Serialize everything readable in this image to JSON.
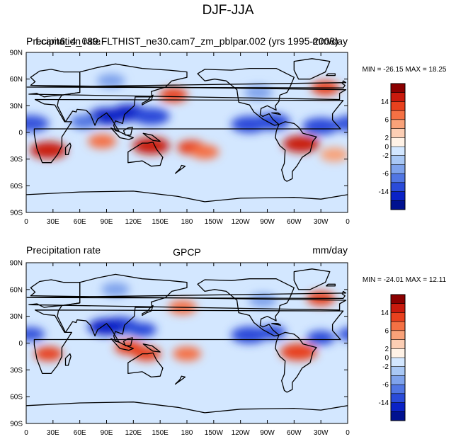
{
  "figure": {
    "title": "DJF-JJA",
    "colors": {
      "background": "#ffffff",
      "coast": "#000000",
      "ocean_neutral": "#d3e7ff"
    }
  },
  "colorbar": {
    "tick_labels": [
      "14",
      "6",
      "2",
      "0",
      "-2",
      "-6",
      "-14"
    ],
    "colors_top_to_bottom": [
      "#8b0000",
      "#c91a0d",
      "#e8411e",
      "#f57144",
      "#f9a279",
      "#fcceb4",
      "#fff2e6",
      "#d3e7ff",
      "#a9c8f5",
      "#7fa3ec",
      "#5176e3",
      "#2a4bd9",
      "#0a22c6",
      "#001190"
    ]
  },
  "chart_data": [
    {
      "type": "heatmap",
      "panel": "top",
      "left_string": "Precipitation rate",
      "center_string": "f.cam6_4_089.FLTHIST_ne30.cam7_zm_pblpar.002 (yrs 1995-2008)",
      "right_string": "mm/day",
      "stats_label": "MIN = -26.15 MAX =  18.25",
      "min": -26.15,
      "max": 18.25,
      "units": "mm/day",
      "x_tick_labels": [
        "0",
        "30E",
        "60E",
        "90E",
        "120E",
        "150E",
        "180",
        "150W",
        "120W",
        "90W",
        "60W",
        "30W",
        "0"
      ],
      "y_tick_labels": [
        "90N",
        "60N",
        "30N",
        "0",
        "30S",
        "60S",
        "90S"
      ],
      "anomalies": [
        {
          "name": "south-america-wet",
          "lon": 308,
          "lat": -13,
          "value": 12
        },
        {
          "name": "southern-africa-wet",
          "lon": 25,
          "lat": -20,
          "value": 10
        },
        {
          "name": "north-australia-wet",
          "lon": 140,
          "lat": -15,
          "value": 10
        },
        {
          "name": "spcz-wet",
          "lon": 185,
          "lat": -17,
          "value": 8
        },
        {
          "name": "south-pacific-wet",
          "lon": 200,
          "lat": -22,
          "value": 5
        },
        {
          "name": "indian-ocean-wet",
          "lon": 85,
          "lat": -10,
          "value": 5
        },
        {
          "name": "north-pacific-storm-track",
          "lon": 165,
          "lat": 42,
          "value": 6
        },
        {
          "name": "north-atlantic-storm-track",
          "lon": 335,
          "lat": 50,
          "value": 7
        },
        {
          "name": "south-atlantic-wet",
          "lon": 345,
          "lat": -25,
          "value": 3
        },
        {
          "name": "asian-monsoon-dry",
          "lon": 115,
          "lat": 22,
          "value": -12
        },
        {
          "name": "bay-of-bengal-dry",
          "lon": 90,
          "lat": 18,
          "value": -14
        },
        {
          "name": "western-pacific-dry",
          "lon": 140,
          "lat": 18,
          "value": -10
        },
        {
          "name": "east-pacific-itcz-dry",
          "lon": 250,
          "lat": 9,
          "value": -10
        },
        {
          "name": "atlantic-itcz-dry",
          "lon": 330,
          "lat": 7,
          "value": -9
        },
        {
          "name": "west-africa-dry",
          "lon": 5,
          "lat": 10,
          "value": -10
        },
        {
          "name": "central-america-dry",
          "lon": 275,
          "lat": 12,
          "value": -10
        },
        {
          "name": "siberia-dry",
          "lon": 95,
          "lat": 58,
          "value": -3
        },
        {
          "name": "north-america-dry",
          "lon": 260,
          "lat": 45,
          "value": -3
        },
        {
          "name": "north-indian-ocean-dry",
          "lon": 65,
          "lat": 12,
          "value": -6
        }
      ]
    },
    {
      "type": "heatmap",
      "panel": "bottom",
      "left_string": "Precipitation rate",
      "center_string": "GPCP",
      "right_string": "mm/day",
      "stats_label": "MIN = -24.01 MAX =  12.11",
      "min": -24.01,
      "max": 12.11,
      "units": "mm/day",
      "x_tick_labels": [
        "0",
        "30E",
        "60E",
        "90E",
        "120E",
        "150E",
        "180",
        "150W",
        "120W",
        "90W",
        "60W",
        "30W",
        "0"
      ],
      "y_tick_labels": [
        "90N",
        "60N",
        "30N",
        "0",
        "30S",
        "60S",
        "90S"
      ],
      "anomalies": [
        {
          "name": "south-america-wet",
          "lon": 305,
          "lat": -10,
          "value": 9
        },
        {
          "name": "southern-africa-wet",
          "lon": 25,
          "lat": -12,
          "value": 7
        },
        {
          "name": "north-australia-wet",
          "lon": 135,
          "lat": -12,
          "value": 7
        },
        {
          "name": "maritime-continent-wet",
          "lon": 115,
          "lat": -5,
          "value": 6
        },
        {
          "name": "spcz-wet",
          "lon": 180,
          "lat": -12,
          "value": 5
        },
        {
          "name": "north-pacific-storm-track",
          "lon": 175,
          "lat": 40,
          "value": 5
        },
        {
          "name": "north-atlantic-storm-track",
          "lon": 330,
          "lat": 50,
          "value": 6
        },
        {
          "name": "asian-monsoon-dry",
          "lon": 105,
          "lat": 20,
          "value": -10
        },
        {
          "name": "bay-of-bengal-dry",
          "lon": 90,
          "lat": 18,
          "value": -13
        },
        {
          "name": "western-pacific-dry",
          "lon": 130,
          "lat": 15,
          "value": -8
        },
        {
          "name": "east-pacific-itcz-dry",
          "lon": 250,
          "lat": 9,
          "value": -9
        },
        {
          "name": "atlantic-itcz-dry",
          "lon": 330,
          "lat": 6,
          "value": -8
        },
        {
          "name": "west-africa-dry",
          "lon": 5,
          "lat": 10,
          "value": -8
        },
        {
          "name": "central-america-dry",
          "lon": 275,
          "lat": 12,
          "value": -8
        },
        {
          "name": "siberia-dry",
          "lon": 100,
          "lat": 60,
          "value": -3
        },
        {
          "name": "north-america-dry",
          "lon": 265,
          "lat": 48,
          "value": -3
        }
      ]
    }
  ]
}
